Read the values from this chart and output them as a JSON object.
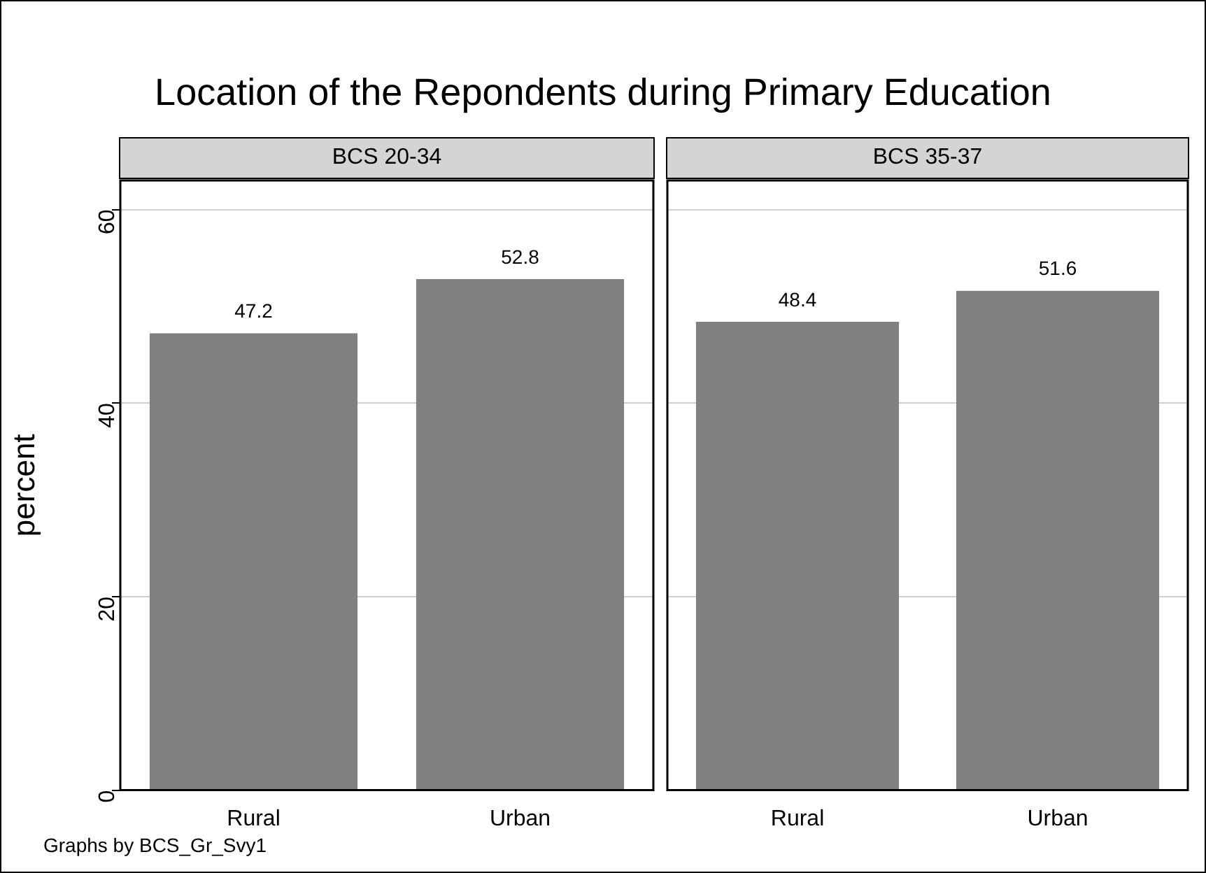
{
  "chart_data": [
    {
      "type": "bar",
      "title": "Location of the Repondents during Primary Education",
      "subtitle": "BCS 20-34",
      "ylabel": "percent",
      "categories": [
        "Rural",
        "Urban"
      ],
      "values": [
        47.2,
        52.8
      ],
      "color": "#808080",
      "ylim": [
        0,
        63
      ],
      "yticks": [
        0,
        20,
        40,
        60
      ],
      "grid": "y",
      "data_labels": true,
      "annotations": [
        "Graphs by BCS_Gr_Svy1"
      ]
    },
    {
      "type": "bar",
      "subtitle": "BCS 35-37",
      "categories": [
        "Rural",
        "Urban"
      ],
      "values": [
        48.4,
        51.6
      ],
      "color": "#808080",
      "ylim": [
        0,
        63
      ],
      "yticks": [
        0,
        20,
        40,
        60
      ],
      "grid": "y",
      "data_labels": true,
      "tick_labels": "x"
    }
  ]
}
